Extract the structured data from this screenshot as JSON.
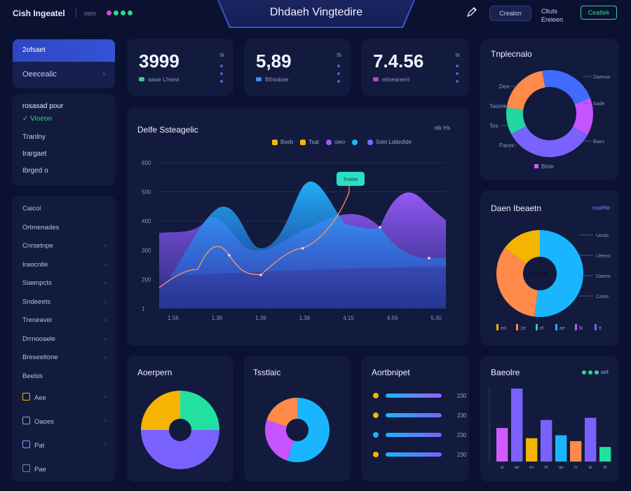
{
  "header": {
    "brand": "Cish Ingeatel",
    "sub": "oeio",
    "title": "Dhdaeh Vingtedire",
    "button": "Crealon",
    "stack_top": "Cltuts",
    "stack_bottom": "Ereleen",
    "green_button": "Ceatlek",
    "dot_colors": [
      "#d64ad6",
      "#2fd68a",
      "#2fd68a",
      "#2fd68a"
    ]
  },
  "sidebar": {
    "active": "2ofsaet",
    "sub": "Oeecealic",
    "section1": [
      "rosasad pour",
      "Vioeon",
      "Tranlny",
      "Irargaet",
      "Ibrged o"
    ],
    "section2": [
      "Caicol",
      "Ortmenades",
      "Cnrsetnpe",
      "Iraocntle",
      "Siaenpcts",
      "Sndeeets",
      "Treneavei",
      "Drrnooaele",
      "Breseeltone",
      "Beebis"
    ],
    "section2_icons": [
      {
        "label": "Aee",
        "icon": "lock-icon"
      },
      {
        "label": "Oaoes",
        "icon": "mail-icon"
      },
      {
        "label": "Pat",
        "icon": "shield-icon"
      },
      {
        "label": "Pae",
        "icon": "grid-icon"
      }
    ]
  },
  "kpis": [
    {
      "value": "3999",
      "small": "tk",
      "sub": "aaae Lhsea",
      "color": "#2fd68a"
    },
    {
      "value": "5,89",
      "small": "th",
      "sub": "Bthiabae",
      "color": "#3a8cff"
    },
    {
      "value": "7.4.56",
      "small": "te",
      "sub": "eitseanent",
      "color": "#b547c9"
    }
  ],
  "main_chart": {
    "title": "Delfe Ssteagelic",
    "right_label": "ntk Hs",
    "legend": [
      {
        "label": "Bseb",
        "color": "#f5b400",
        "shape": "sq"
      },
      {
        "label": "Tsat",
        "color": "#f5b400",
        "shape": "sq"
      },
      {
        "label": "oieo",
        "color": "#9b5cff",
        "shape": "circ"
      },
      {
        "label": "",
        "color": "#1fb6ff",
        "shape": "circ"
      },
      {
        "label": "Sdel Lddedide",
        "color": "#7a6bff",
        "shape": "circ"
      }
    ],
    "y_ticks": [
      "600",
      "500",
      "400",
      "300",
      "200",
      "1"
    ],
    "x_ticks": [
      "1.56",
      "1.36",
      "1.36",
      "1.36",
      "4.15",
      "4.56",
      "5.30"
    ],
    "tooltip": "Tnstse"
  },
  "pie1": {
    "title": "Tnplecnalo",
    "labels_left": [
      "Dee",
      "Taoore",
      "Tes",
      "Pares"
    ],
    "labels_right": [
      "Daenon",
      "Sade",
      "Baes"
    ],
    "bottom": "Btsle",
    "slices": [
      {
        "value": 22,
        "color": "#3f6bff"
      },
      {
        "value": 14,
        "color": "#c554ff"
      },
      {
        "value": 34,
        "color": "#7a62ff"
      },
      {
        "value": 10,
        "color": "#22d6a0"
      },
      {
        "value": 20,
        "color": "#ff8a4a"
      }
    ]
  },
  "pie2": {
    "title": "Daen Ibeaetn",
    "right_label": "noaHle",
    "center": "Rione",
    "labels_right": [
      "Ueslo",
      "Ueeno",
      "Daeno",
      "Celoe"
    ],
    "slices": [
      {
        "value": 52,
        "color": "#19b6ff"
      },
      {
        "value": 33,
        "color": "#ff8a4a"
      },
      {
        "value": 15,
        "color": "#f5b400"
      }
    ],
    "bottom_legend": [
      "ed",
      "1e",
      "el",
      "ae",
      "tk",
      "tt"
    ],
    "bottom_colors": [
      "#f5b400",
      "#ff8a4a",
      "#22d6a0",
      "#19b6ff",
      "#c554ff",
      "#7a62ff"
    ]
  },
  "donut_a": {
    "title": "Aoerpern",
    "slices": [
      {
        "value": 25,
        "color": "#22e0a0"
      },
      {
        "value": 50,
        "color": "#7a62ff"
      },
      {
        "value": 25,
        "color": "#f5b400"
      }
    ]
  },
  "donut_b": {
    "title": "Tsstlaic",
    "slices": [
      {
        "value": 55,
        "color": "#19b6ff"
      },
      {
        "value": 25,
        "color": "#c554ff"
      },
      {
        "value": 20,
        "color": "#ff8a4a"
      }
    ]
  },
  "bars_list": {
    "title": "Aortbnipet",
    "rows": [
      {
        "value": "230",
        "fill": 1.0,
        "color": "#9b5cff",
        "dot": "#f5b400"
      },
      {
        "value": "230",
        "fill": 1.0,
        "color": "#7a62ff",
        "dot": "#f5b400"
      },
      {
        "value": "230",
        "fill": 1.0,
        "color": "#7a62ff",
        "dot": "#19b6ff"
      },
      {
        "value": "230",
        "fill": 1.0,
        "color": "#7a62ff",
        "dot": "#f5b400"
      }
    ]
  },
  "bar_chart": {
    "title": "Baeolre",
    "right": "aet",
    "chart_data": {
      "type": "bar",
      "categories": [
        "ai",
        "ae",
        "es",
        "th",
        "ae",
        "ts",
        "te",
        "tb"
      ],
      "values": [
        46,
        100,
        32,
        57,
        36,
        28,
        60,
        20
      ],
      "colors": [
        "#d05cff",
        "#7a62ff",
        "#f5b400",
        "#7a62ff",
        "#19b6ff",
        "#ff8a4a",
        "#7a62ff",
        "#22e0a0"
      ]
    }
  }
}
